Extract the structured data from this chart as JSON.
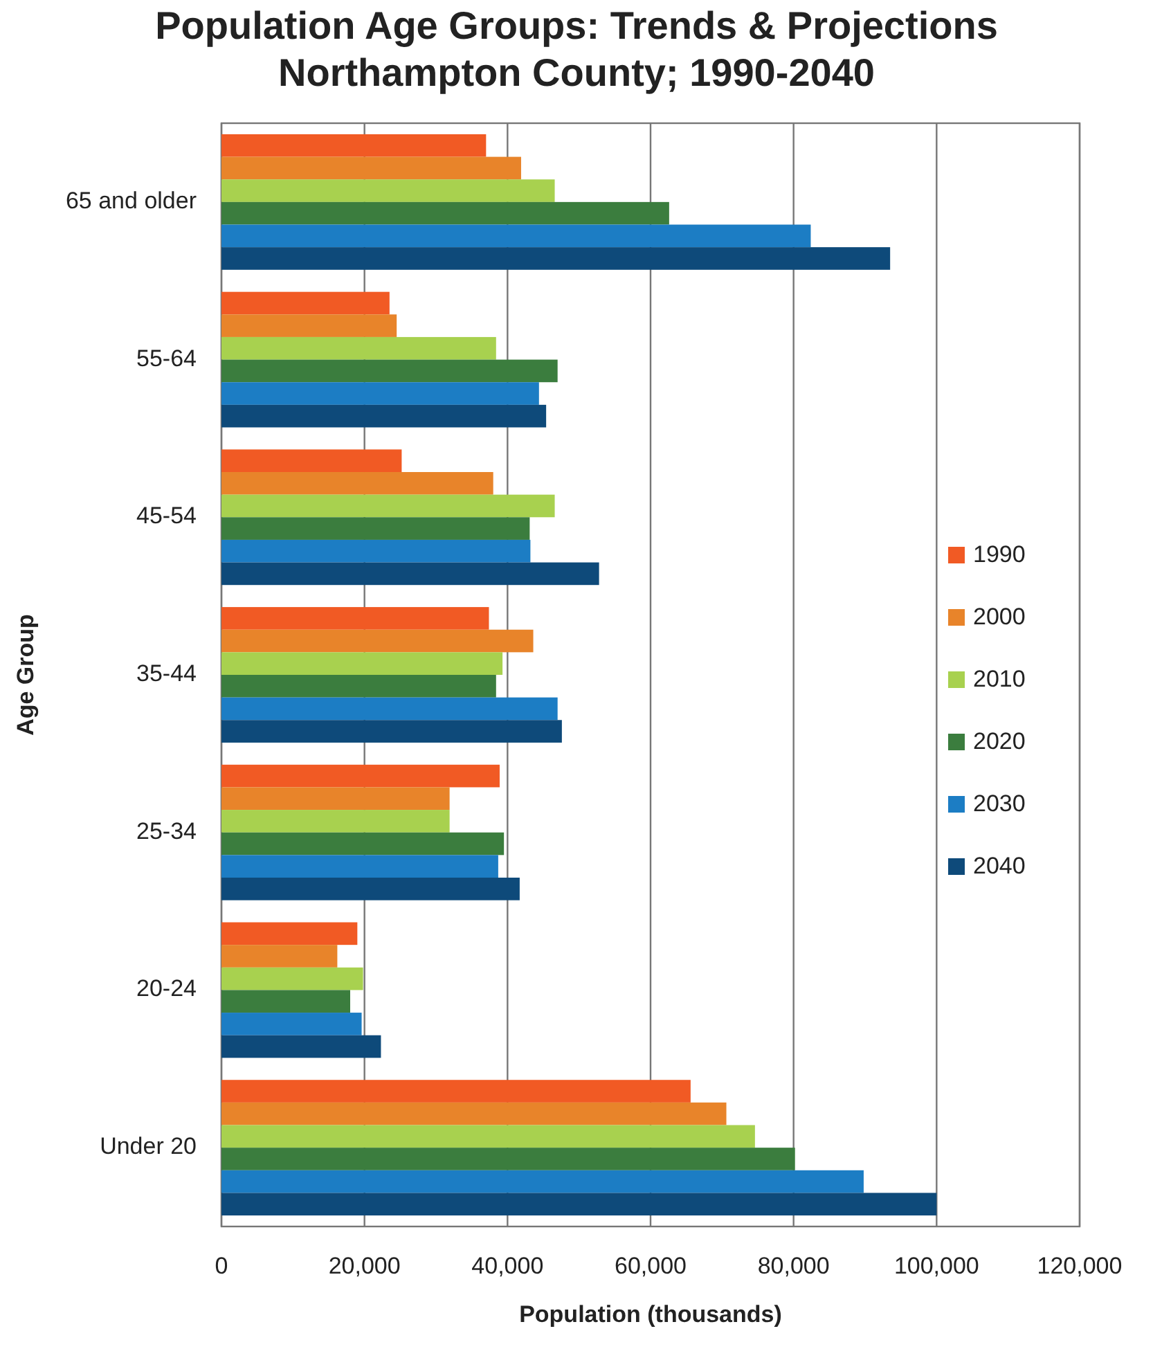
{
  "chart_data": {
    "type": "bar",
    "orientation": "horizontal",
    "title": "Population Age Groups: Trends & Projections",
    "subtitle": "Northampton County; 1990-2040",
    "xlabel": "Population (thousands)",
    "ylabel": "Age Group",
    "categories": [
      "65 and older",
      "55-64",
      "45-54",
      "35-44",
      "25-34",
      "20-24",
      "Under 20"
    ],
    "series": [
      {
        "name": "1990",
        "color": "#f15a24",
        "values": [
          37000,
          23500,
          25200,
          37400,
          38900,
          19000,
          65600
        ]
      },
      {
        "name": "2000",
        "color": "#e8842a",
        "values": [
          41900,
          24500,
          38000,
          43600,
          31900,
          16200,
          70600
        ]
      },
      {
        "name": "2010",
        "color": "#a8d14f",
        "values": [
          46600,
          38400,
          46600,
          39300,
          31900,
          19800,
          74600
        ]
      },
      {
        "name": "2020",
        "color": "#3b7d3e",
        "values": [
          62600,
          47000,
          43100,
          38400,
          39500,
          18000,
          80200
        ]
      },
      {
        "name": "2030",
        "color": "#1c7dc4",
        "values": [
          82400,
          44400,
          43200,
          47000,
          38700,
          19600,
          89800
        ]
      },
      {
        "name": "2040",
        "color": "#0e4a7a",
        "values": [
          93500,
          45400,
          52800,
          47600,
          41700,
          22300,
          100000
        ]
      }
    ],
    "xlim": [
      0,
      120000
    ],
    "xticks": [
      {
        "value": 0,
        "label": "0"
      },
      {
        "value": 20000,
        "label": "20,000"
      },
      {
        "value": 40000,
        "label": "40,000"
      },
      {
        "value": 60000,
        "label": "60,000"
      },
      {
        "value": 80000,
        "label": "80,000"
      },
      {
        "value": 100000,
        "label": "100,000"
      },
      {
        "value": 120000,
        "label": "120,000"
      }
    ],
    "grid": "x",
    "legend": "right"
  }
}
